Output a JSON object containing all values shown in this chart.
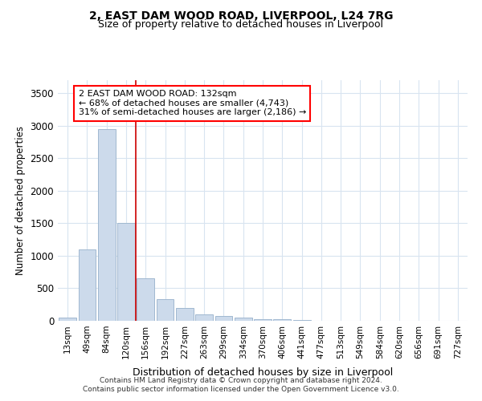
{
  "title": "2, EAST DAM WOOD ROAD, LIVERPOOL, L24 7RG",
  "subtitle": "Size of property relative to detached houses in Liverpool",
  "xlabel": "Distribution of detached houses by size in Liverpool",
  "ylabel": "Number of detached properties",
  "bar_labels": [
    "13sqm",
    "49sqm",
    "84sqm",
    "120sqm",
    "156sqm",
    "192sqm",
    "227sqm",
    "263sqm",
    "299sqm",
    "334sqm",
    "370sqm",
    "406sqm",
    "441sqm",
    "477sqm",
    "513sqm",
    "549sqm",
    "584sqm",
    "620sqm",
    "656sqm",
    "691sqm",
    "727sqm"
  ],
  "bar_values": [
    50,
    1100,
    2950,
    1500,
    650,
    330,
    200,
    100,
    75,
    50,
    30,
    20,
    15,
    5,
    3,
    2,
    1,
    1,
    0,
    0,
    0
  ],
  "bar_color": "#ccdaeb",
  "bar_edge_color": "#a0b8d0",
  "annotation_box_text": "2 EAST DAM WOOD ROAD: 132sqm\n← 68% of detached houses are smaller (4,743)\n31% of semi-detached houses are larger (2,186) →",
  "vline_x": 3.5,
  "vline_color": "#cc0000",
  "ylim": [
    0,
    3700
  ],
  "yticks": [
    0,
    500,
    1000,
    1500,
    2000,
    2500,
    3000,
    3500
  ],
  "background_color": "#ffffff",
  "plot_bg_color": "#ffffff",
  "grid_color": "#d8e4f0",
  "footer_line1": "Contains HM Land Registry data © Crown copyright and database right 2024.",
  "footer_line2": "Contains public sector information licensed under the Open Government Licence v3.0."
}
